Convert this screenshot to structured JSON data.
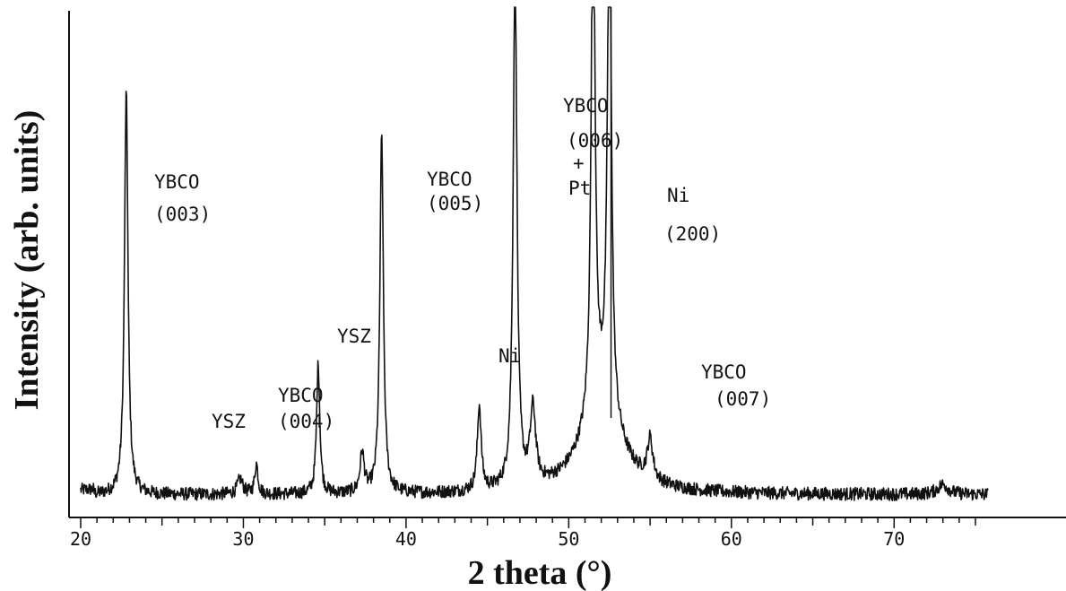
{
  "chart_data": {
    "type": "line",
    "xlabel": "2 theta (°)",
    "ylabel": "Intensity (arb. units)",
    "xlim": [
      19.5,
      75.8
    ],
    "ylim": [
      0,
      105
    ],
    "x_ticks": [
      20,
      30,
      40,
      50,
      60,
      70
    ],
    "x_tick_labels": [
      "20",
      "30",
      "40",
      "50",
      "60",
      "70"
    ],
    "grid": false,
    "baseline": 4.5,
    "peaks": [
      {
        "x": 22.8,
        "height": 80,
        "width": 0.13
      },
      {
        "x": 29.8,
        "height": 3,
        "width": 0.2
      },
      {
        "x": 30.8,
        "height": 6,
        "width": 0.12
      },
      {
        "x": 34.6,
        "height": 26,
        "width": 0.12
      },
      {
        "x": 37.3,
        "height": 8,
        "width": 0.15
      },
      {
        "x": 38.5,
        "height": 71,
        "width": 0.13
      },
      {
        "x": 44.5,
        "height": 17,
        "width": 0.14
      },
      {
        "x": 46.7,
        "height": 105,
        "width": 0.14
      },
      {
        "x": 47.8,
        "height": 15,
        "width": 0.2
      },
      {
        "x": 51.5,
        "height": 108,
        "width": 0.14
      },
      {
        "x": 52.5,
        "height": 108,
        "width": 0.14
      },
      {
        "x": 55.0,
        "height": 8,
        "width": 0.2
      },
      {
        "x": 73.0,
        "height": 2,
        "width": 0.4
      }
    ],
    "broad_peaks": [
      {
        "x": 52.0,
        "height": 18,
        "width": 1.4
      }
    ],
    "annotations": [
      {
        "lines": [
          "YBCO",
          "(003)"
        ]
      },
      {
        "lines": [
          "YSZ"
        ]
      },
      {
        "lines": [
          "YBCO",
          "(004)"
        ]
      },
      {
        "lines": [
          "YSZ"
        ]
      },
      {
        "lines": [
          "YBCO",
          "(005)"
        ]
      },
      {
        "lines": [
          "Ni"
        ]
      },
      {
        "lines": [
          "YBCO",
          "(006)",
          "+",
          "Pt"
        ]
      },
      {
        "lines": [
          "Ni",
          "(200)"
        ]
      },
      {
        "lines": [
          "YBCO",
          "(007)"
        ]
      }
    ]
  }
}
